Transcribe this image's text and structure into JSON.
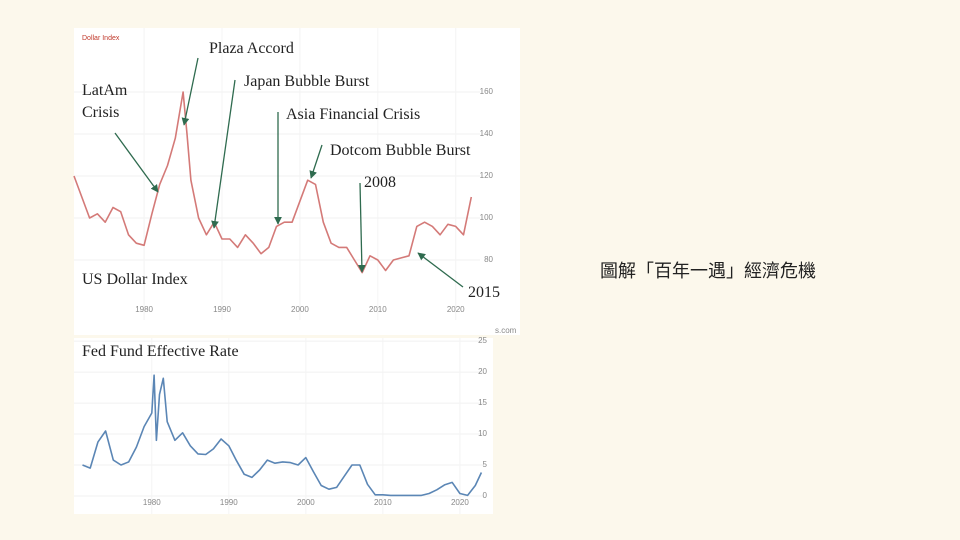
{
  "chart_data": [
    {
      "type": "line",
      "title": "Dollar Index",
      "label": "US Dollar Index",
      "watermark": "s.com",
      "color": "#d47a78",
      "x": [
        1971,
        1972,
        1973,
        1974,
        1975,
        1976,
        1977,
        1978,
        1979,
        1980,
        1981,
        1982,
        1983,
        1984,
        1985,
        1985.5,
        1986,
        1987,
        1988,
        1989,
        1990,
        1991,
        1992,
        1993,
        1994,
        1995,
        1996,
        1997,
        1998,
        1999,
        2000,
        2001,
        2002,
        2003,
        2004,
        2005,
        2006,
        2007,
        2008,
        2009,
        2010,
        2011,
        2012,
        2013,
        2014,
        2015,
        2016,
        2017,
        2018,
        2019,
        2020,
        2021,
        2022
      ],
      "values": [
        120,
        110,
        100,
        102,
        98,
        105,
        103,
        92,
        88,
        87,
        102,
        116,
        125,
        138,
        160,
        140,
        118,
        100,
        92,
        98,
        90,
        90,
        86,
        92,
        88,
        83,
        86,
        96,
        98,
        98,
        108,
        118,
        116,
        98,
        88,
        86,
        86,
        80,
        74,
        82,
        80,
        75,
        80,
        81,
        82,
        96,
        98,
        96,
        92,
        97,
        96,
        92,
        110
      ],
      "xlim": [
        1971,
        2024.4
      ],
      "ylim": [
        51.4,
        190.5
      ],
      "xticks": [
        1980,
        1990,
        2000,
        2010,
        2020
      ],
      "yticks": [
        80,
        100,
        120,
        140,
        160
      ],
      "annotations": [
        "Plaza Accord",
        "Japan Bubble Burst",
        "LatAm",
        "Crisis",
        "Asia Financial Crisis",
        "Dotcom Bubble Burst",
        "2008",
        "2015"
      ]
    },
    {
      "type": "line",
      "title": "Fed Fund Effective Rate",
      "color": "#5b86b5",
      "x": [
        1971,
        1972,
        1973,
        1974,
        1975,
        1976,
        1977,
        1978,
        1979,
        1980,
        1980.3,
        1980.6,
        1981,
        1981.5,
        1982,
        1983,
        1984,
        1985,
        1986,
        1987,
        1988,
        1989,
        1990,
        1991,
        1992,
        1993,
        1994,
        1995,
        1996,
        1997,
        1998,
        1999,
        2000,
        2001,
        2002,
        2003,
        2004,
        2005,
        2006,
        2007,
        2008,
        2009,
        2010,
        2011,
        2012,
        2013,
        2014,
        2015,
        2016,
        2017,
        2018,
        2019,
        2020,
        2021,
        2022,
        2022.8
      ],
      "values": [
        5,
        4.5,
        8.7,
        10.5,
        5.8,
        5,
        5.5,
        7.9,
        11.2,
        13.4,
        19.5,
        9,
        16.4,
        19,
        12,
        9,
        10.2,
        8.1,
        6.8,
        6.7,
        7.6,
        9.2,
        8.1,
        5.7,
        3.5,
        3,
        4.2,
        5.8,
        5.3,
        5.5,
        5.4,
        5,
        6.2,
        3.9,
        1.7,
        1.1,
        1.4,
        3.2,
        5,
        5,
        1.9,
        0.2,
        0.2,
        0.1,
        0.1,
        0.1,
        0.1,
        0.1,
        0.4,
        1,
        1.8,
        2.2,
        0.4,
        0.1,
        1.7,
        3.8
      ],
      "xlim": [
        1969.9,
        2024.3
      ],
      "ylim": [
        -2.9,
        25.5
      ],
      "xticks": [
        1980,
        1990,
        2000,
        2010,
        2020
      ],
      "yticks": [
        0,
        5,
        10,
        15,
        20,
        25
      ]
    }
  ],
  "slide_title": "圖解「百年一遇」經濟危機"
}
